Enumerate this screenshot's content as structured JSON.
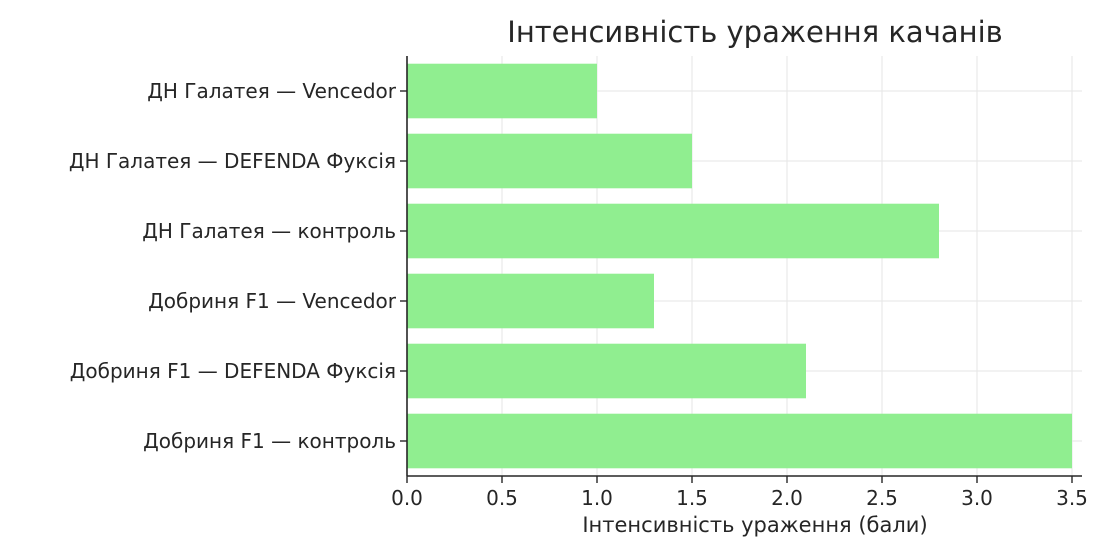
{
  "chart_data": {
    "type": "bar",
    "orientation": "horizontal",
    "title": "Інтенсивність ураження качанів",
    "xlabel": "Інтенсивність ураження (бали)",
    "ylabel": "",
    "xlim": [
      0,
      3.5
    ],
    "xticks": [
      "0.0",
      "0.5",
      "1.0",
      "1.5",
      "2.0",
      "2.5",
      "3.0",
      "3.5"
    ],
    "grid": true,
    "bar_color": "#90ee90",
    "categories": [
      "ДН Галатея — Vencedor",
      "ДН Галатея — DEFENDA Фуксія",
      "ДН Галатея — контроль",
      "Добриня F1 — Vencedor",
      "Добриня F1 — DEFENDA Фуксія",
      "Добриня F1 — контроль"
    ],
    "values": [
      1.0,
      1.5,
      2.8,
      1.3,
      2.1,
      3.5
    ]
  }
}
